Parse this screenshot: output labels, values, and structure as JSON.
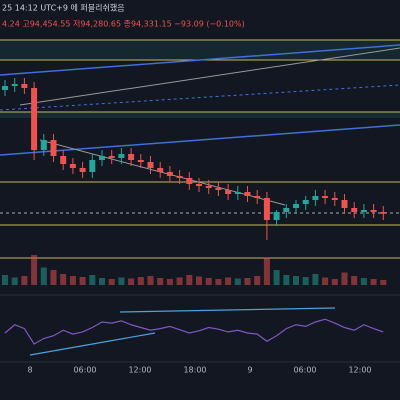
{
  "chart_data": {
    "type": "candlestick",
    "title": "25 14:12 UTC+9 에 퍼블리쉬했음",
    "subtitle": "4.24 고94,454.55 저94,280.65 종94,331.15 −93.09 (−0.10%)",
    "open": [
      94950,
      94970,
      94980,
      94960,
      94650,
      94700,
      94620,
      94580,
      94560,
      94540,
      94600,
      94620,
      94610,
      94630,
      94600,
      94590,
      94560,
      94540,
      94520,
      94510,
      94480,
      94470,
      94460,
      94450,
      94430,
      94440,
      94420,
      94410,
      94300,
      94340,
      94360,
      94380,
      94400,
      94420,
      94410,
      94400,
      94360,
      94340,
      94350,
      94340
    ],
    "high": [
      95000,
      95010,
      95010,
      94990,
      94730,
      94730,
      94650,
      94610,
      94590,
      94630,
      94650,
      94650,
      94660,
      94660,
      94630,
      94620,
      94590,
      94570,
      94550,
      94540,
      94510,
      94500,
      94490,
      94480,
      94470,
      94470,
      94450,
      94440,
      94350,
      94380,
      94400,
      94420,
      94450,
      94450,
      94440,
      94430,
      94390,
      94380,
      94380,
      94370
    ],
    "low": [
      94920,
      94940,
      94930,
      94600,
      94620,
      94590,
      94550,
      94530,
      94510,
      94510,
      94570,
      94580,
      94580,
      94570,
      94560,
      94530,
      94510,
      94490,
      94480,
      94450,
      94440,
      94430,
      94420,
      94400,
      94400,
      94390,
      94380,
      94200,
      94270,
      94310,
      94330,
      94350,
      94370,
      94380,
      94370,
      94330,
      94310,
      94310,
      94310,
      94300
    ],
    "close": [
      94970,
      94980,
      94960,
      94650,
      94700,
      94620,
      94580,
      94560,
      94540,
      94600,
      94620,
      94610,
      94630,
      94600,
      94590,
      94560,
      94540,
      94520,
      94510,
      94480,
      94470,
      94460,
      94450,
      94430,
      94440,
      94420,
      94410,
      94300,
      94340,
      94360,
      94380,
      94400,
      94420,
      94410,
      94400,
      94360,
      94340,
      94350,
      94340,
      94331.15
    ],
    "ylim": [
      94100,
      95200
    ],
    "volume": [
      20,
      15,
      18,
      60,
      35,
      30,
      22,
      18,
      16,
      20,
      14,
      12,
      15,
      13,
      16,
      18,
      14,
      12,
      15,
      20,
      17,
      14,
      12,
      15,
      13,
      14,
      18,
      55,
      30,
      20,
      18,
      16,
      22,
      15,
      12,
      25,
      18,
      14,
      12,
      10
    ],
    "volume_lim": [
      0,
      80
    ],
    "oscillator": [
      40,
      55,
      48,
      20,
      30,
      35,
      45,
      38,
      42,
      50,
      60,
      58,
      62,
      55,
      50,
      45,
      48,
      52,
      46,
      40,
      44,
      50,
      47,
      42,
      45,
      40,
      38,
      25,
      35,
      48,
      55,
      52,
      60,
      65,
      58,
      50,
      45,
      55,
      48,
      42
    ],
    "oscillator_lim": [
      0,
      100
    ],
    "xticks": [
      "8",
      "06:00",
      "12:00",
      "18:00",
      "9",
      "06:00",
      "12:00"
    ]
  }
}
